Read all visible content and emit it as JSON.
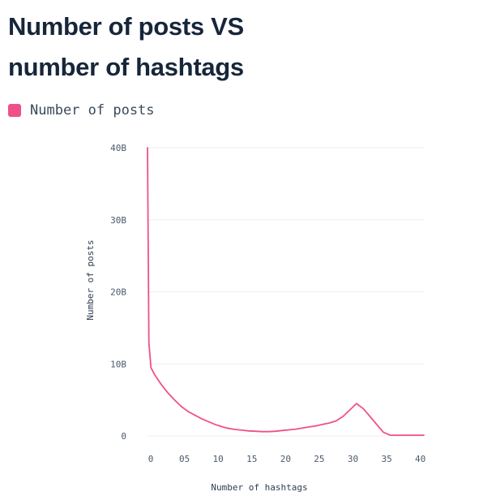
{
  "chart_data": {
    "type": "line",
    "title": "Number of posts VS number of hashtags",
    "title_lines": [
      "Number of posts VS",
      "number of hashtags"
    ],
    "xlabel": "Number of hashtags",
    "ylabel": "Number of posts",
    "xlim": [
      0,
      41
    ],
    "ylim": [
      0,
      40
    ],
    "y_unit_suffix": "B",
    "x_ticks": [
      {
        "value": 0,
        "label": "0"
      },
      {
        "value": 5,
        "label": "05"
      },
      {
        "value": 10,
        "label": "10"
      },
      {
        "value": 15,
        "label": "15"
      },
      {
        "value": 20,
        "label": "20"
      },
      {
        "value": 25,
        "label": "25"
      },
      {
        "value": 30,
        "label": "30"
      },
      {
        "value": 35,
        "label": "35"
      },
      {
        "value": 40,
        "label": "40"
      }
    ],
    "y_ticks": [
      {
        "value": 0,
        "label": "0"
      },
      {
        "value": 10,
        "label": "10B"
      },
      {
        "value": 20,
        "label": "20B"
      },
      {
        "value": 30,
        "label": "30B"
      },
      {
        "value": 40,
        "label": "40B"
      }
    ],
    "grid": true,
    "legend_position": "top-left",
    "series": [
      {
        "name": "Number of posts",
        "color": "#f0508a",
        "x": [
          0,
          0.2,
          0.5,
          1,
          2,
          3,
          4,
          5,
          6,
          7,
          8,
          9,
          10,
          11,
          12,
          13,
          14,
          15,
          16,
          17,
          18,
          19,
          20,
          21,
          22,
          23,
          24,
          25,
          26,
          27,
          28,
          29,
          30,
          31,
          32,
          33,
          34,
          35,
          36,
          37,
          38,
          39,
          40,
          41
        ],
        "values": [
          40,
          13,
          9.5,
          8.6,
          7.2,
          6.0,
          5.0,
          4.1,
          3.4,
          2.9,
          2.4,
          2.0,
          1.6,
          1.3,
          1.05,
          0.9,
          0.8,
          0.7,
          0.65,
          0.6,
          0.6,
          0.65,
          0.75,
          0.85,
          0.95,
          1.1,
          1.25,
          1.4,
          1.6,
          1.8,
          2.1,
          2.7,
          3.6,
          4.5,
          3.8,
          2.7,
          1.6,
          0.5,
          0.1,
          0.1,
          0.1,
          0.1,
          0.1,
          0.1
        ]
      }
    ]
  }
}
